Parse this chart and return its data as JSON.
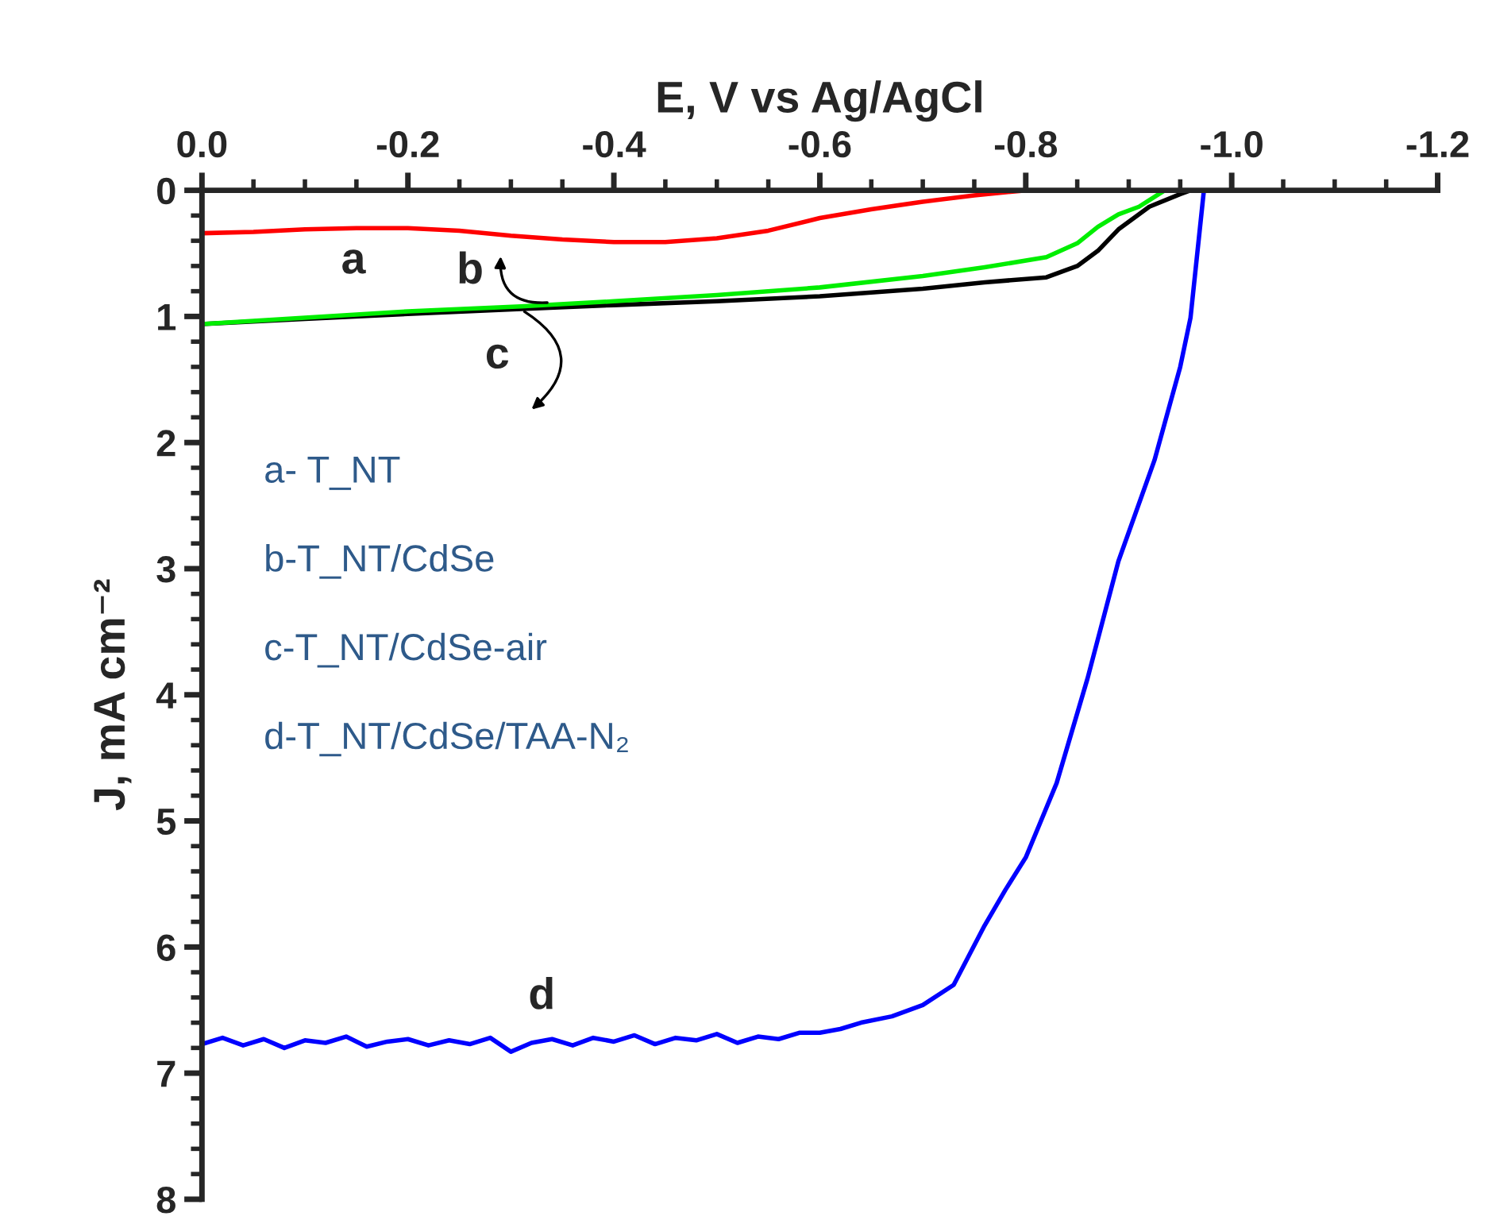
{
  "chart_data": {
    "type": "line",
    "xlabel": "E, V vs Ag/AgCl",
    "ylabel": "J, mA cm⁻²",
    "xlim": [
      0.0,
      -1.2
    ],
    "ylim": [
      8,
      0
    ],
    "xticks": [
      {
        "value": 0.0,
        "label": "0.0"
      },
      {
        "value": -0.2,
        "label": "-0.2"
      },
      {
        "value": -0.4,
        "label": "-0.4"
      },
      {
        "value": -0.6,
        "label": "-0.6"
      },
      {
        "value": -0.8,
        "label": "-0.8"
      },
      {
        "value": -1.0,
        "label": "-1.0"
      },
      {
        "value": -1.2,
        "label": "-1.2"
      }
    ],
    "yticks": [
      0,
      1,
      2,
      3,
      4,
      5,
      6,
      7,
      8
    ],
    "grid": false,
    "legend": false,
    "line_style": "solid",
    "series": [
      {
        "color": "#ff0000",
        "x": [
          0,
          -0.05,
          -0.1,
          -0.15,
          -0.2,
          -0.25,
          -0.3,
          -0.35,
          -0.4,
          -0.45,
          -0.5,
          -0.55,
          -0.6,
          -0.65,
          -0.7,
          -0.75,
          -0.8
        ],
        "values": [
          0.34,
          0.33,
          0.31,
          0.3,
          0.3,
          0.32,
          0.36,
          0.39,
          0.41,
          0.41,
          0.38,
          0.32,
          0.22,
          0.15,
          0.09,
          0.04,
          0.0
        ]
      },
      {
        "color": "#000000",
        "x": [
          0,
          -0.1,
          -0.2,
          -0.31,
          -0.4,
          -0.5,
          -0.6,
          -0.7,
          -0.76,
          -0.82,
          -0.85,
          -0.87,
          -0.89,
          -0.92,
          -0.95,
          -0.96
        ],
        "values": [
          1.06,
          1.02,
          0.98,
          0.94,
          0.91,
          0.88,
          0.84,
          0.78,
          0.73,
          0.69,
          0.6,
          0.48,
          0.31,
          0.13,
          0.03,
          0.0
        ]
      },
      {
        "color": "#00ee00",
        "x": [
          0,
          -0.1,
          -0.2,
          -0.31,
          -0.4,
          -0.5,
          -0.6,
          -0.7,
          -0.76,
          -0.82,
          -0.85,
          -0.87,
          -0.89,
          -0.91,
          -0.935
        ],
        "values": [
          1.06,
          1.01,
          0.96,
          0.92,
          0.88,
          0.83,
          0.77,
          0.68,
          0.61,
          0.53,
          0.42,
          0.29,
          0.19,
          0.13,
          0.0
        ]
      },
      {
        "color": "#0000ff",
        "x": [
          0,
          -0.02,
          -0.04,
          -0.06,
          -0.08,
          -0.1,
          -0.12,
          -0.14,
          -0.16,
          -0.18,
          -0.2,
          -0.22,
          -0.24,
          -0.26,
          -0.28,
          -0.3,
          -0.32,
          -0.34,
          -0.36,
          -0.38,
          -0.4,
          -0.42,
          -0.44,
          -0.46,
          -0.48,
          -0.5,
          -0.52,
          -0.54,
          -0.56,
          -0.58,
          -0.6,
          -0.62,
          -0.64,
          -0.67,
          -0.7,
          -0.73,
          -0.76,
          -0.78,
          -0.8,
          -0.83,
          -0.86,
          -0.89,
          -0.925,
          -0.95,
          -0.96,
          -0.973
        ],
        "values": [
          6.77,
          6.72,
          6.78,
          6.73,
          6.8,
          6.74,
          6.76,
          6.71,
          6.79,
          6.75,
          6.73,
          6.78,
          6.74,
          6.77,
          6.72,
          6.83,
          6.76,
          6.73,
          6.78,
          6.72,
          6.75,
          6.7,
          6.77,
          6.72,
          6.74,
          6.69,
          6.76,
          6.71,
          6.73,
          6.68,
          6.68,
          6.65,
          6.6,
          6.55,
          6.46,
          6.3,
          5.83,
          5.55,
          5.29,
          4.7,
          3.87,
          2.94,
          2.14,
          1.4,
          1.01,
          0.0
        ]
      }
    ],
    "annotations": [
      "a",
      "b",
      "c",
      "d",
      "a- T_NT",
      "b-T_NT/CdSe",
      "c-T_NT/CdSe-air",
      "d-T_NT/CdSe/TAA-N₂"
    ]
  }
}
